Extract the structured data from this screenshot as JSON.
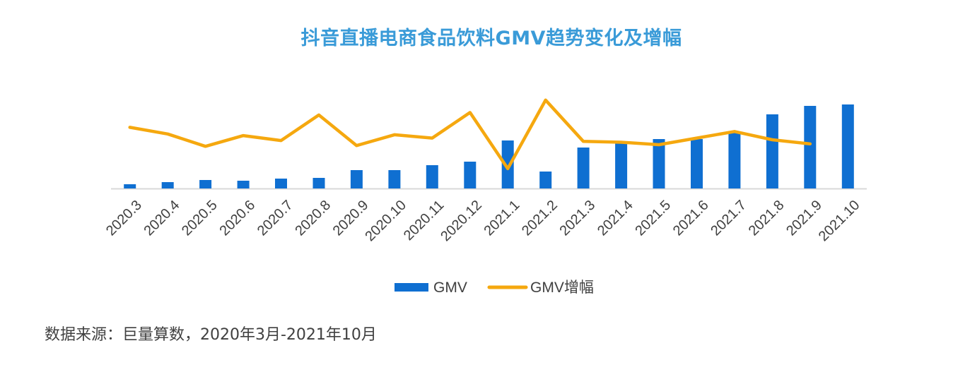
{
  "title": "抖音直播电商食品饮料GMV趋势变化及增幅",
  "source_note": "数据来源：巨量算数，2020年3月-2021年10月",
  "colors": {
    "bar": "#0f6fd1",
    "line": "#f5a80f",
    "title": "#3a9bd8",
    "axis": "#d9d9d9",
    "text": "#404040"
  },
  "chart_data": {
    "type": "bar",
    "categories": [
      "2020.3",
      "2020.4",
      "2020.5",
      "2020.6",
      "2020.7",
      "2020.8",
      "2020.9",
      "2020.10",
      "2020.11",
      "2020.12",
      "2021.1",
      "2021.2",
      "2021.3",
      "2021.4",
      "2021.5",
      "2021.6",
      "2021.7",
      "2021.8",
      "2021.9",
      "2021.10"
    ],
    "series": [
      {
        "name": "GMV",
        "type": "bar",
        "values": [
          6,
          9,
          12,
          11,
          14,
          15,
          26,
          26,
          33,
          38,
          68,
          24,
          58,
          64,
          70,
          70,
          80,
          105,
          117,
          119
        ]
      },
      {
        "name": "GMV增幅",
        "type": "line",
        "values": [
          74,
          66,
          51,
          64,
          58,
          89,
          52,
          65,
          61,
          92,
          24,
          107,
          57,
          56,
          53,
          61,
          69,
          59,
          54,
          null
        ]
      }
    ],
    "legend_position": "bottom",
    "grid": false,
    "xlabel": "",
    "ylabel": "",
    "ylim": [
      0,
      120
    ]
  }
}
